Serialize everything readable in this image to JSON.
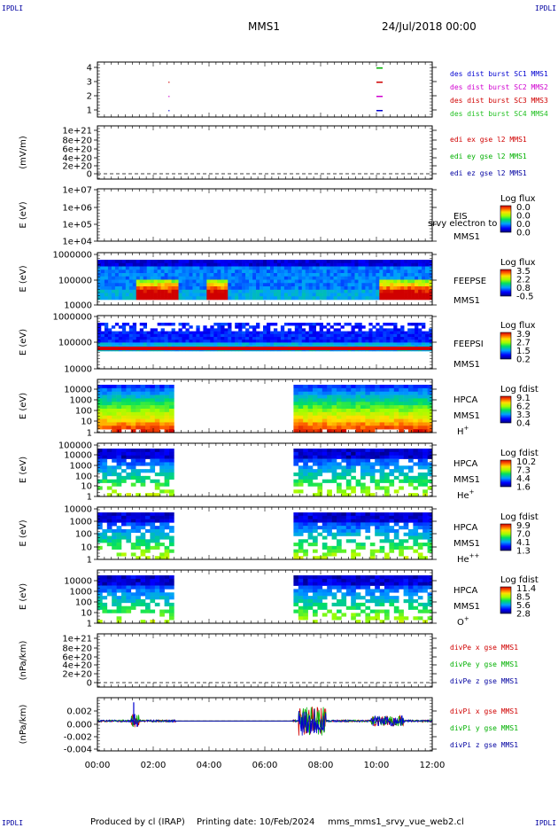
{
  "header": {
    "corner_tl": "IPDLI",
    "corner_tr": "IPDLI",
    "corner_bl": "IPDLI",
    "corner_br": "IPDLI",
    "title": "MMS1",
    "datetime": "24/Jul/2018 00:00"
  },
  "footer": {
    "produced": "Produced by cl (IRAP)",
    "printing": "Printing date: 10/Feb/2024",
    "script": "mms_mms1_srvy_vue_web2.cl"
  },
  "colors": {
    "blue": "#0000d0",
    "red": "#d00000",
    "green": "#00b000",
    "magenta": "#d000d0",
    "dark_blue": "#0000a0",
    "green_legend": "#20c020"
  },
  "chart_data": {
    "type": "heatmap",
    "x_axis": {
      "ticks": [
        "00:00",
        "02:00",
        "04:00",
        "06:00",
        "08:00",
        "10:00",
        "12:00"
      ],
      "range_hours": [
        0,
        12
      ]
    },
    "panels": [
      {
        "id": "burst",
        "type": "scatter",
        "yticks": [
          "4",
          "3",
          "2",
          "1"
        ],
        "legend": [
          {
            "text": "des dist burst SC1 MMS1",
            "color": "#0000d0"
          },
          {
            "text": "des dist burst SC2 MMS2",
            "color": "#d000d0"
          },
          {
            "text": "des dist burst SC3 MMS3",
            "color": "#d00000"
          },
          {
            "text": "des dist burst SC4 MMS4",
            "color": "#20c020"
          }
        ],
        "marks": [
          {
            "sc": 1,
            "hours": [
              2.55,
              10.0
            ]
          },
          {
            "sc": 2,
            "hours": [
              2.55,
              10.0
            ]
          },
          {
            "sc": 3,
            "hours": [
              2.55,
              10.0
            ]
          },
          {
            "sc": 4,
            "hours": [
              10.0
            ]
          }
        ]
      },
      {
        "id": "edi",
        "type": "line",
        "ylabel": "(mV/m)",
        "yticks": [
          "1e+21",
          "8e+20",
          "6e+20",
          "4e+20",
          "2e+20",
          "0"
        ],
        "legend": [
          {
            "text": "edi ex gse l2 MMS1",
            "color": "#d00000"
          },
          {
            "text": "edi ey gse l2 MMS1",
            "color": "#00b000"
          },
          {
            "text": "edi ez gse l2 MMS1",
            "color": "#0000a0"
          }
        ]
      },
      {
        "id": "eis",
        "type": "heatmap",
        "ylabel": "E (eV)",
        "yticks": [
          "1e+07",
          "1e+06",
          "1e+05",
          "1e+04"
        ],
        "instrument": "EIS",
        "instrument_overlay": "srvy electron to",
        "sc": "MMS1",
        "cb_title": "Log flux",
        "cb_ticks": [
          "0.0",
          "0.0",
          "0.0",
          "0.0"
        ]
      },
      {
        "id": "feepse",
        "type": "heatmap",
        "ylabel": "E (eV)",
        "yticks": [
          "1000000",
          "100000",
          "10000"
        ],
        "instrument": "FEEPSE",
        "sc": "MMS1",
        "cb_title": "Log flux",
        "cb_ticks": [
          "3.5",
          "2.2",
          "0.8",
          "-0.5"
        ]
      },
      {
        "id": "feepsi",
        "type": "heatmap",
        "ylabel": "E (eV)",
        "yticks": [
          "1000000",
          "100000",
          "10000"
        ],
        "instrument": "FEEPSI",
        "sc": "MMS1",
        "cb_title": "Log flux",
        "cb_ticks": [
          "3.9",
          "2.7",
          "1.5",
          "0.2"
        ]
      },
      {
        "id": "hpca_h",
        "type": "heatmap",
        "ylabel": "E (eV)",
        "yticks": [
          "10000",
          "1000",
          "100",
          "10",
          "1"
        ],
        "instrument": "HPCA",
        "sc": "MMS1",
        "species": "H",
        "charge": "+",
        "cb_title": "Log fdist",
        "cb_ticks": [
          "9.1",
          "6.2",
          "3.3",
          "0.4"
        ],
        "data_intervals_hours": [
          [
            0,
            2.8
          ],
          [
            7.0,
            12.0
          ]
        ]
      },
      {
        "id": "hpca_he",
        "type": "heatmap",
        "ylabel": "E (eV)",
        "yticks": [
          "100000",
          "10000",
          "1000",
          "100",
          "10",
          "1"
        ],
        "instrument": "HPCA",
        "sc": "MMS1",
        "species": "He",
        "charge": "+",
        "cb_title": "Log fdist",
        "cb_ticks": [
          "10.2",
          "7.3",
          "4.4",
          "1.6"
        ],
        "data_intervals_hours": [
          [
            0,
            2.8
          ],
          [
            7.0,
            12.0
          ]
        ]
      },
      {
        "id": "hpca_hepp",
        "type": "heatmap",
        "ylabel": "E (eV)",
        "yticks": [
          "10000",
          "1000",
          "100",
          "10",
          "1"
        ],
        "instrument": "HPCA",
        "sc": "MMS1",
        "species": "He",
        "charge": "++",
        "cb_title": "Log fdist",
        "cb_ticks": [
          "9.9",
          "7.0",
          "4.1",
          "1.3"
        ],
        "data_intervals_hours": [
          [
            0,
            2.8
          ],
          [
            7.0,
            12.0
          ]
        ]
      },
      {
        "id": "hpca_o",
        "type": "heatmap",
        "ylabel": "E (eV)",
        "yticks": [
          "10000",
          "1000",
          "100",
          "10",
          "1"
        ],
        "instrument": "HPCA",
        "sc": "MMS1",
        "species": "O",
        "charge": "+",
        "cb_title": "Log fdist",
        "cb_ticks": [
          "11.4",
          "8.5",
          "5.6",
          "2.8"
        ],
        "data_intervals_hours": [
          [
            0,
            2.8
          ],
          [
            7.0,
            12.0
          ]
        ]
      },
      {
        "id": "divpe",
        "type": "line",
        "ylabel": "(nPa/km)",
        "yticks": [
          "1e+21",
          "8e+20",
          "6e+20",
          "4e+20",
          "2e+20",
          "0"
        ],
        "legend": [
          {
            "text": "divPe x gse MMS1",
            "color": "#d00000"
          },
          {
            "text": "divPe y gse MMS1",
            "color": "#00b000"
          },
          {
            "text": "divPe z gse MMS1",
            "color": "#0000a0"
          }
        ]
      },
      {
        "id": "divpi",
        "type": "line",
        "ylabel": "(nPa/km)",
        "yticks": [
          "0.002",
          "0.000",
          "-0.002",
          "-0.004"
        ],
        "ylim": [
          -0.0045,
          0.0035
        ],
        "legend": [
          {
            "text": "divPi x gse MMS1",
            "color": "#d00000"
          },
          {
            "text": "divPi y gse MMS1",
            "color": "#00b000"
          },
          {
            "text": "divPi z gse MMS1",
            "color": "#0000a0"
          }
        ],
        "data_intervals_hours": [
          [
            0,
            2.8
          ],
          [
            7.0,
            12.0
          ]
        ]
      }
    ]
  }
}
